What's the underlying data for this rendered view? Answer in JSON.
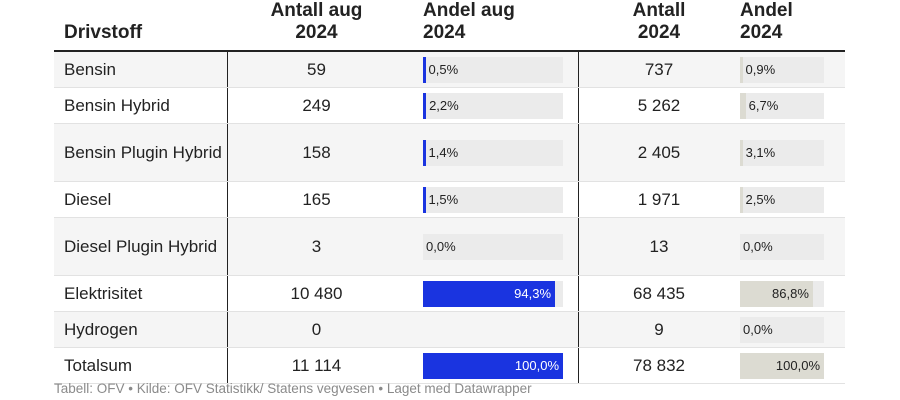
{
  "headers": {
    "fuel": "Drivstoff",
    "count_aug_l1": "Antall aug",
    "count_aug_l2": "2024",
    "share_aug_l1": "Andel aug",
    "share_aug_l2": "2024",
    "count_l1": "Antall",
    "count_l2": "2024",
    "share_l1": "Andel",
    "share_l2": "2024"
  },
  "rows": [
    {
      "name": "Bensin",
      "count_aug": "59",
      "share_aug": "0,5%",
      "share_aug_val": 0.5,
      "count": "737",
      "share": "0,9%",
      "share_val": 0.9
    },
    {
      "name": "Bensin Hybrid",
      "count_aug": "249",
      "share_aug": "2,2%",
      "share_aug_val": 2.2,
      "count": "5 262",
      "share": "6,7%",
      "share_val": 6.7
    },
    {
      "name": "Bensin Plugin Hybrid",
      "count_aug": "158",
      "share_aug": "1,4%",
      "share_aug_val": 1.4,
      "count": "2 405",
      "share": "3,1%",
      "share_val": 3.1
    },
    {
      "name": "Diesel",
      "count_aug": "165",
      "share_aug": "1,5%",
      "share_aug_val": 1.5,
      "count": "1 971",
      "share": "2,5%",
      "share_val": 2.5
    },
    {
      "name": "Diesel Plugin Hybrid",
      "count_aug": "3",
      "share_aug": "0,0%",
      "share_aug_val": 0.0,
      "count": "13",
      "share": "0,0%",
      "share_val": 0.0
    },
    {
      "name": "Elektrisitet",
      "count_aug": "10 480",
      "share_aug": "94,3%",
      "share_aug_val": 94.3,
      "count": "68 435",
      "share": "86,8%",
      "share_val": 86.8
    },
    {
      "name": "Hydrogen",
      "count_aug": "0",
      "share_aug": "",
      "share_aug_val": null,
      "count": "9",
      "share": "0,0%",
      "share_val": 0.0
    },
    {
      "name": "Totalsum",
      "count_aug": "11 114",
      "share_aug": "100,0%",
      "share_aug_val": 100.0,
      "count": "78 832",
      "share": "100,0%",
      "share_val": 100.0
    }
  ],
  "footer": "Tabell: OFV • Kilde: OFV Statistikk/ Statens vegvesen • Laget med Datawrapper",
  "colors": {
    "bar_primary": "#1a34e0",
    "bar_secondary": "#dcdbd2",
    "bar_track": "#ebebeb"
  }
}
